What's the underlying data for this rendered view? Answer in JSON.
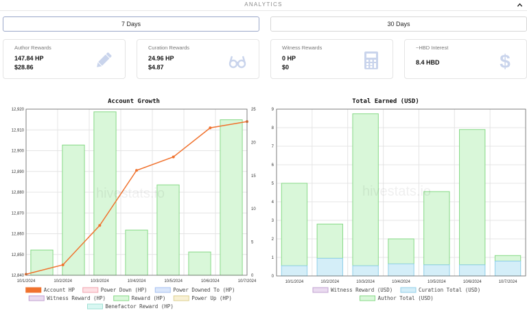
{
  "header": {
    "title": "ANALYTICS"
  },
  "range_buttons": {
    "seven_days": "7 Days",
    "thirty_days": "30 Days",
    "selected": "7 Days"
  },
  "cards": [
    {
      "label": "Author Rewards",
      "line1": "147.84 HP",
      "line2": "$28.86",
      "icon": "pencil-icon"
    },
    {
      "label": "Curation Rewards",
      "line1": "24.96 HP",
      "line2": "$4.87",
      "icon": "glasses-icon"
    },
    {
      "label": "Witness Rewards",
      "line1": "0 HP",
      "line2": "$0",
      "icon": "calculator-icon"
    },
    {
      "label": "~HBD Interest",
      "line1": "8.4 HBD",
      "line2": "",
      "icon": "dollar-icon"
    }
  ],
  "colors": {
    "account_hp": "#f0722e",
    "reward_fill": "#d9f7d9",
    "reward_stroke": "#86d986",
    "curation_fill": "#d4eef8",
    "curation_stroke": "#8fcfe8",
    "power_down_fill": "#fde0e4",
    "power_down_stroke": "#f2a2ae",
    "power_downed_fill": "#dbe7fb",
    "power_downed_stroke": "#a4bff0",
    "witness_fill": "#eadbf0",
    "witness_stroke": "#c0a0d0",
    "power_up_fill": "#f8f0d4",
    "power_up_stroke": "#dccf8f",
    "benefactor_fill": "#d8f7f2",
    "benefactor_stroke": "#9fe0d4"
  },
  "watermark": "hivestats.io",
  "chart_data": [
    {
      "type": "bar",
      "title": "Account Growth",
      "categories": [
        "10/1/2024",
        "10/2/2024",
        "10/3/2024",
        "10/4/2024",
        "10/5/2024",
        "10/6/2024",
        "10/7/2024"
      ],
      "y_left": {
        "ticks": [
          "12,840",
          "12,850",
          "12,860",
          "12,870",
          "12,880",
          "12,890",
          "12,900",
          "12,910",
          "12,920"
        ],
        "range": [
          12840,
          12920
        ]
      },
      "y_right": {
        "ticks": [
          "0",
          "5",
          "10",
          "15",
          "20",
          "25"
        ],
        "range": [
          0,
          25
        ]
      },
      "series": [
        {
          "name": "Account HP",
          "type": "line",
          "axis": "left",
          "values": [
            12840.5,
            12845,
            12864,
            12890.5,
            12897,
            12911,
            12914
          ]
        },
        {
          "name": "Power Down (HP)",
          "type": "bar",
          "axis": "right",
          "values": [
            0,
            0,
            0,
            0,
            0,
            0,
            0
          ]
        },
        {
          "name": "Power Downed To (HP)",
          "type": "bar",
          "axis": "right",
          "values": [
            0,
            0,
            0,
            0,
            0,
            0,
            0
          ]
        },
        {
          "name": "Witness Reward (HP)",
          "type": "bar",
          "axis": "right",
          "values": [
            0,
            0,
            0,
            0,
            0,
            0,
            0
          ]
        },
        {
          "name": "Reward (HP)",
          "type": "bar",
          "axis": "right",
          "values": [
            3.8,
            19.6,
            24.6,
            6.8,
            13.6,
            3.5,
            23.4
          ]
        },
        {
          "name": "Power Up (HP)",
          "type": "bar",
          "axis": "right",
          "values": [
            0,
            0,
            0,
            0,
            0,
            0,
            0
          ]
        },
        {
          "name": "Benefactor Reward (HP)",
          "type": "bar",
          "axis": "right",
          "values": [
            0,
            0,
            0,
            0,
            0,
            0,
            0
          ]
        }
      ],
      "legend_rows": [
        [
          "Account HP",
          "Power Down (HP)",
          "Power Downed To (HP)"
        ],
        [
          "Witness Reward (HP)",
          "Reward (HP)",
          "Power Up (HP)"
        ],
        [
          "Benefactor Reward (HP)"
        ]
      ]
    },
    {
      "type": "bar",
      "title": "Total Earned (USD)",
      "categories": [
        "10/1/2024",
        "10/2/2024",
        "10/3/2024",
        "10/4/2024",
        "10/5/2024",
        "10/6/2024",
        "10/7/2024"
      ],
      "y": {
        "ticks": [
          "0",
          "1",
          "2",
          "3",
          "4",
          "5",
          "6",
          "7",
          "8",
          "9"
        ],
        "range": [
          0,
          9
        ]
      },
      "stacked": true,
      "series": [
        {
          "name": "Witness Reward (USD)",
          "values": [
            0,
            0,
            0,
            0,
            0,
            0,
            0
          ]
        },
        {
          "name": "Curation Total (USD)",
          "values": [
            0.55,
            0.95,
            0.55,
            0.65,
            0.6,
            0.6,
            0.8
          ]
        },
        {
          "name": "Author Total (USD)",
          "values": [
            4.45,
            1.85,
            8.2,
            1.35,
            3.95,
            7.3,
            0.3
          ]
        }
      ],
      "legend_rows": [
        [
          "Witness Reward (USD)",
          "Curation Total (USD)"
        ],
        [
          "Author Total (USD)"
        ]
      ]
    }
  ]
}
